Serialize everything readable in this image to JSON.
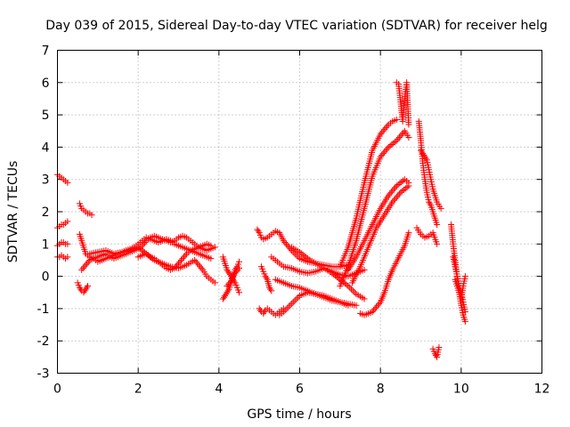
{
  "chart_data": {
    "type": "scatter",
    "title": "Day 039 of 2015, Sidereal Day-to-day VTEC variation (SDTVAR) for receiver helg",
    "xlabel": "GPS time / hours",
    "ylabel": "SDTVAR / TECUs",
    "xlim": [
      0,
      12
    ],
    "ylim": [
      -3,
      7
    ],
    "xticks": [
      "0",
      "2",
      "4",
      "6",
      "8",
      "10",
      "12"
    ],
    "yticks": [
      "-3",
      "-2",
      "-1",
      "0",
      "1",
      "2",
      "3",
      "4",
      "5",
      "6",
      "7"
    ],
    "grid": true,
    "marker": "+",
    "color": "#ff0000",
    "series": [
      {
        "name": "seg-a",
        "x": [
          0.0,
          0.05,
          0.1,
          0.15,
          0.2,
          0.25
        ],
        "y": [
          3.15,
          3.1,
          3.05,
          3.0,
          2.95,
          2.9
        ]
      },
      {
        "name": "seg-b",
        "x": [
          0.0,
          0.05,
          0.1,
          0.15,
          0.2,
          0.25
        ],
        "y": [
          1.5,
          1.55,
          1.6,
          1.6,
          1.65,
          1.7
        ]
      },
      {
        "name": "seg-c",
        "x": [
          0.0,
          0.05,
          0.1,
          0.15,
          0.2,
          0.25
        ],
        "y": [
          0.95,
          1.0,
          1.05,
          1.05,
          1.0,
          1.0
        ]
      },
      {
        "name": "seg-d",
        "x": [
          0.0,
          0.05,
          0.1,
          0.15,
          0.2,
          0.25
        ],
        "y": [
          0.6,
          0.6,
          0.65,
          0.6,
          0.55,
          0.6
        ]
      },
      {
        "name": "seg-e",
        "x": [
          0.55,
          0.6,
          0.65,
          0.7,
          0.75,
          0.8,
          0.85
        ],
        "y": [
          2.25,
          2.1,
          2.05,
          2.0,
          1.95,
          1.95,
          1.9
        ]
      },
      {
        "name": "seg-f",
        "x": [
          0.5,
          0.55,
          0.6,
          0.65,
          0.7,
          0.75
        ],
        "y": [
          -0.2,
          -0.35,
          -0.45,
          -0.5,
          -0.4,
          -0.3
        ]
      },
      {
        "name": "seg-g",
        "x": [
          0.55,
          0.6,
          0.65,
          0.7,
          0.8,
          0.9,
          1.0,
          1.1,
          1.2,
          1.3,
          1.4,
          1.5,
          1.6,
          1.7,
          1.8,
          1.9,
          2.0,
          2.1,
          2.2,
          2.3,
          2.4,
          2.5,
          2.6,
          2.7,
          2.8,
          2.9,
          3.0,
          3.1,
          3.2,
          3.3,
          3.4,
          3.5,
          3.6,
          3.7,
          3.8
        ],
        "y": [
          1.3,
          1.1,
          0.9,
          0.7,
          0.6,
          0.55,
          0.6,
          0.65,
          0.7,
          0.6,
          0.65,
          0.7,
          0.75,
          0.8,
          0.85,
          0.9,
          1.0,
          1.1,
          1.2,
          1.15,
          1.1,
          1.05,
          1.1,
          1.15,
          1.1,
          1.0,
          0.95,
          0.9,
          0.85,
          0.8,
          0.75,
          0.7,
          0.65,
          0.6,
          0.55
        ]
      },
      {
        "name": "seg-h",
        "x": [
          0.6,
          0.7,
          0.8,
          0.9,
          1.0,
          1.1,
          1.2,
          1.3,
          1.4,
          1.5,
          1.6,
          1.7,
          1.8,
          1.9,
          2.0,
          2.1,
          2.2,
          2.3,
          2.4,
          2.5,
          2.6,
          2.7,
          2.8,
          2.9,
          3.0,
          3.1,
          3.2,
          3.3,
          3.4,
          3.5,
          3.6,
          3.7,
          3.8,
          3.9
        ],
        "y": [
          0.2,
          0.35,
          0.5,
          0.55,
          0.45,
          0.5,
          0.55,
          0.6,
          0.55,
          0.6,
          0.65,
          0.7,
          0.75,
          0.8,
          0.85,
          0.95,
          1.1,
          1.2,
          1.25,
          1.2,
          1.15,
          1.1,
          1.05,
          1.1,
          1.2,
          1.25,
          1.2,
          1.1,
          1.0,
          0.9,
          0.85,
          0.8,
          0.85,
          0.9
        ]
      },
      {
        "name": "seg-i",
        "x": [
          0.8,
          1.0,
          1.2,
          1.4,
          1.6,
          1.8,
          2.0,
          2.2,
          2.4,
          2.6,
          2.8,
          3.0,
          3.2,
          3.4,
          3.6,
          3.7,
          3.8,
          3.9
        ],
        "y": [
          0.7,
          0.75,
          0.8,
          0.7,
          0.75,
          0.8,
          0.9,
          0.7,
          0.5,
          0.4,
          0.3,
          0.25,
          0.35,
          0.5,
          0.2,
          0.0,
          -0.1,
          -0.2
        ]
      },
      {
        "name": "seg-j",
        "x": [
          2.0,
          2.1,
          2.2,
          2.3,
          2.4,
          2.5,
          2.6,
          2.7,
          2.8,
          2.9,
          3.0,
          3.1,
          3.2,
          3.3,
          3.4,
          3.5,
          3.6,
          3.7,
          3.8
        ],
        "y": [
          0.6,
          0.65,
          0.7,
          0.6,
          0.55,
          0.45,
          0.35,
          0.25,
          0.2,
          0.25,
          0.4,
          0.55,
          0.7,
          0.8,
          0.85,
          0.9,
          0.95,
          1.0,
          0.95
        ]
      },
      {
        "name": "seg-k",
        "x": [
          4.1,
          4.15,
          4.2,
          4.25,
          4.3,
          4.35,
          4.4,
          4.45,
          4.5
        ],
        "y": [
          0.6,
          0.4,
          0.2,
          0.1,
          0.0,
          -0.1,
          -0.2,
          -0.35,
          -0.5
        ]
      },
      {
        "name": "seg-l",
        "x": [
          4.1,
          4.15,
          4.2,
          4.25,
          4.3,
          4.35,
          4.4,
          4.45,
          4.5
        ],
        "y": [
          -0.7,
          -0.6,
          -0.5,
          -0.4,
          -0.2,
          0.0,
          0.2,
          0.3,
          0.45
        ]
      },
      {
        "name": "seg-m",
        "x": [
          4.2,
          4.3,
          4.4,
          4.5
        ],
        "y": [
          -0.3,
          -0.15,
          0.1,
          0.25
        ]
      },
      {
        "name": "seg-n",
        "x": [
          4.95,
          5.0,
          5.05,
          5.1,
          5.2,
          5.3,
          5.4,
          5.5,
          5.6,
          5.8,
          6.0,
          6.2,
          6.4,
          6.6,
          6.8,
          7.0,
          7.2
        ],
        "y": [
          1.45,
          1.35,
          1.2,
          1.15,
          1.2,
          1.3,
          1.4,
          1.35,
          1.1,
          0.8,
          0.55,
          0.45,
          0.4,
          0.35,
          0.3,
          0.3,
          0.35
        ]
      },
      {
        "name": "seg-o",
        "x": [
          5.0,
          5.05,
          5.1,
          5.15,
          5.2,
          5.3,
          5.4,
          5.5,
          5.6
        ],
        "y": [
          -1.0,
          -1.1,
          -1.15,
          -1.05,
          -1.0,
          -1.1,
          -1.2,
          -1.1,
          -1.0
        ]
      },
      {
        "name": "seg-p",
        "x": [
          5.05,
          5.1,
          5.15,
          5.2,
          5.25,
          5.3
        ],
        "y": [
          0.3,
          0.15,
          0.0,
          -0.1,
          -0.35,
          -0.45
        ]
      },
      {
        "name": "seg-q",
        "x": [
          5.3,
          5.4,
          5.5,
          5.6,
          5.8,
          6.0,
          6.2,
          6.4,
          6.6,
          6.8,
          7.0,
          7.2,
          7.4,
          7.6
        ],
        "y": [
          0.6,
          0.5,
          0.4,
          0.3,
          0.25,
          0.15,
          0.1,
          0.15,
          0.25,
          0.1,
          -0.1,
          -0.3,
          -0.55,
          -0.7
        ]
      },
      {
        "name": "seg-r",
        "x": [
          5.4,
          5.6,
          5.8,
          6.0,
          6.2,
          6.4,
          6.6,
          6.8,
          7.0,
          7.2
        ],
        "y": [
          -0.1,
          -0.2,
          -0.3,
          -0.35,
          -0.45,
          -0.55,
          -0.6,
          -0.7,
          -0.8,
          -0.9
        ]
      },
      {
        "name": "seg-s",
        "x": [
          5.5,
          5.6,
          5.8,
          6.0,
          6.2,
          6.4,
          6.6,
          6.8,
          7.0,
          7.2,
          7.4
        ],
        "y": [
          -1.2,
          -1.1,
          -0.85,
          -0.6,
          -0.5,
          -0.55,
          -0.65,
          -0.75,
          -0.8,
          -0.85,
          -0.9
        ]
      },
      {
        "name": "seg-t",
        "x": [
          5.8,
          6.0,
          6.2,
          6.4,
          6.6,
          6.8,
          7.0,
          7.2,
          7.4,
          7.6
        ],
        "y": [
          0.9,
          0.75,
          0.55,
          0.4,
          0.25,
          0.15,
          0.05,
          0.0,
          0.1,
          0.2
        ]
      },
      {
        "name": "seg-u",
        "x": [
          7.0,
          7.2,
          7.4,
          7.6,
          7.8,
          8.0,
          8.1,
          8.2,
          8.3,
          8.4
        ],
        "y": [
          0.3,
          0.9,
          1.8,
          2.9,
          3.9,
          4.4,
          4.55,
          4.7,
          4.8,
          4.85
        ]
      },
      {
        "name": "seg-v",
        "x": [
          7.0,
          7.2,
          7.4,
          7.6,
          7.8,
          8.0,
          8.2,
          8.4,
          8.6,
          8.7
        ],
        "y": [
          -0.3,
          0.3,
          1.1,
          2.1,
          3.1,
          3.7,
          4.0,
          4.2,
          4.5,
          4.3
        ]
      },
      {
        "name": "seg-w",
        "x": [
          7.2,
          7.4,
          7.6,
          7.8,
          8.0,
          8.2,
          8.4,
          8.6,
          8.7
        ],
        "y": [
          0.2,
          0.6,
          1.1,
          1.6,
          2.1,
          2.5,
          2.8,
          3.0,
          2.9
        ]
      },
      {
        "name": "seg-x",
        "x": [
          7.3,
          7.5,
          7.7,
          7.9,
          8.1,
          8.3,
          8.5,
          8.7
        ],
        "y": [
          -0.2,
          0.3,
          0.9,
          1.5,
          1.9,
          2.3,
          2.6,
          2.8
        ]
      },
      {
        "name": "seg-y",
        "x": [
          7.5,
          7.6,
          7.7,
          7.8,
          7.9,
          8.0,
          8.1,
          8.2,
          8.3,
          8.4,
          8.5,
          8.6,
          8.7
        ],
        "y": [
          -1.15,
          -1.2,
          -1.15,
          -1.1,
          -0.95,
          -0.8,
          -0.5,
          -0.1,
          0.2,
          0.45,
          0.7,
          0.95,
          1.35
        ]
      },
      {
        "name": "seg-z",
        "x": [
          8.4,
          8.45,
          8.5,
          8.55,
          8.6,
          8.65,
          8.7
        ],
        "y": [
          6.0,
          5.95,
          5.4,
          4.8,
          5.5,
          6.0,
          4.7
        ]
      },
      {
        "name": "seg-aa",
        "x": [
          8.95,
          9.0,
          9.05,
          9.1,
          9.15,
          9.2,
          9.25,
          9.3,
          9.35,
          9.4
        ],
        "y": [
          4.8,
          4.2,
          3.5,
          3.0,
          2.6,
          2.3,
          2.2,
          2.0,
          1.8,
          1.6
        ]
      },
      {
        "name": "seg-ab",
        "x": [
          9.0,
          9.05,
          9.1,
          9.15,
          9.2,
          9.25,
          9.3,
          9.35,
          9.4,
          9.5
        ],
        "y": [
          3.9,
          3.8,
          3.7,
          3.6,
          3.3,
          3.0,
          2.7,
          2.5,
          2.3,
          2.1
        ]
      },
      {
        "name": "seg-ac",
        "x": [
          8.9,
          9.0,
          9.1,
          9.2,
          9.3,
          9.4
        ],
        "y": [
          1.5,
          1.3,
          1.2,
          1.25,
          1.35,
          1.0
        ]
      },
      {
        "name": "seg-ad",
        "x": [
          9.3,
          9.35,
          9.4,
          9.45
        ],
        "y": [
          -2.25,
          -2.4,
          -2.5,
          -2.2
        ]
      },
      {
        "name": "seg-ae",
        "x": [
          9.75,
          9.8,
          9.85,
          9.9,
          9.95,
          10.0,
          10.05,
          10.1
        ],
        "y": [
          1.6,
          1.0,
          0.5,
          0.0,
          -0.5,
          -0.9,
          -1.2,
          -1.4
        ]
      },
      {
        "name": "seg-af",
        "x": [
          9.8,
          9.85,
          9.9,
          9.95,
          10.0,
          10.05,
          10.1
        ],
        "y": [
          0.6,
          0.3,
          0.0,
          -0.3,
          -0.5,
          -0.8,
          -1.1
        ]
      },
      {
        "name": "seg-ag",
        "x": [
          9.85,
          9.9,
          9.95,
          10.0,
          10.05,
          10.1
        ],
        "y": [
          -0.1,
          -0.3,
          -0.5,
          -0.7,
          -0.3,
          0.0
        ]
      }
    ]
  }
}
